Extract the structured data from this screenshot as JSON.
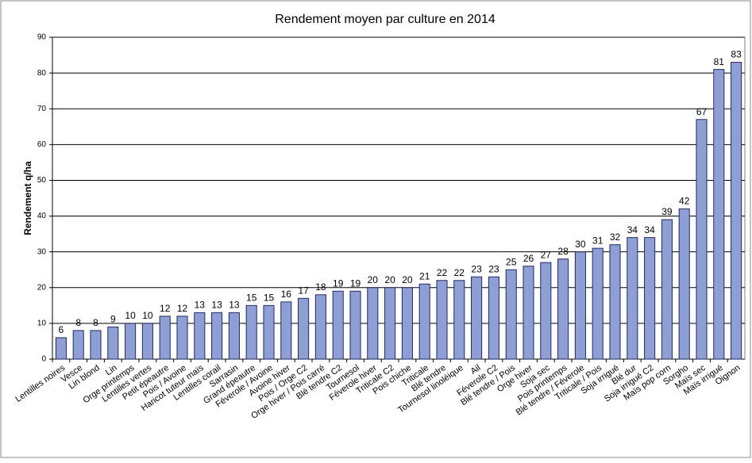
{
  "chart_data": {
    "type": "bar",
    "title": "Rendement moyen par culture en 2014",
    "y_label": "Rendement q/ha",
    "categories": [
      "Lentilles noires",
      "Vesce",
      "Lin blond",
      "Lin",
      "Orge printemps",
      "Lentilles vertes",
      "Petit épeautre",
      "Pois / Avoine",
      "Haricot tuteur maïs",
      "Lentilles corail",
      "Sarrasin",
      "Grand épeautre",
      "Féverole / Avoine",
      "Avoine hiver",
      "Pois / Orge C2",
      "Orge hiver / Pois carré",
      "Blé tendre C2",
      "Tournesol",
      "Féverole hiver",
      "Triticale C2",
      "Pois chiche",
      "Triticale",
      "Blé tendre",
      "Tournesol linoléique",
      "Ail",
      "Féverole C2",
      "Blé tendre / Pois",
      "Orge hiver",
      "Soja sec",
      "Pois printemps",
      "Blé tendre / Féverole",
      "Triticale / Pois",
      "Soja irrigué",
      "Blé dur",
      "Soja irrigué C2",
      "Maïs pop corn",
      "Sorgho",
      "Maïs sec",
      "Maïs irrigué",
      "Oignon"
    ],
    "values": [
      6,
      8,
      8,
      9,
      10,
      10,
      12,
      12,
      13,
      13,
      13,
      15,
      15,
      16,
      17,
      18,
      19,
      19,
      20,
      20,
      20,
      21,
      22,
      22,
      23,
      23,
      25,
      26,
      27,
      28,
      30,
      31,
      32,
      34,
      34,
      39,
      42,
      67,
      81,
      83
    ],
    "color": "#8e9fd6",
    "edge_color": "#1f2a66",
    "ylim": [
      0,
      90
    ],
    "yticks": [
      0,
      10,
      20,
      30,
      40,
      50,
      60,
      70,
      80,
      90
    ],
    "grid": true
  }
}
